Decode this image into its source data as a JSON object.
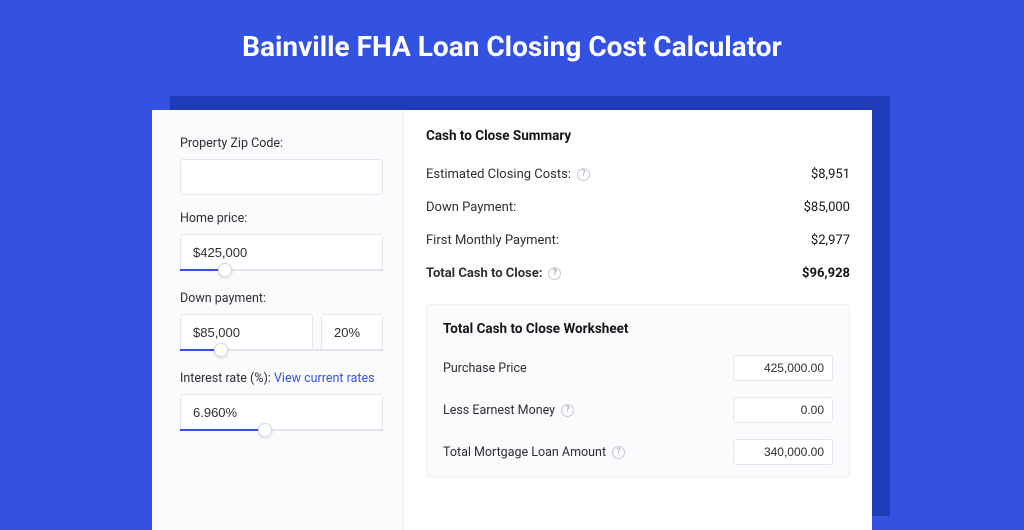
{
  "colors": {
    "page_bg": "#3452e1",
    "shadow_bg": "#1f3bb8",
    "card_bg": "#ffffff",
    "left_bg": "#fbfbfd",
    "border": "#e3e6ee",
    "text": "#2e2e34",
    "link": "#3452e1"
  },
  "header": {
    "title": "Bainville FHA Loan Closing Cost Calculator"
  },
  "left": {
    "zip": {
      "label": "Property Zip Code:",
      "value": ""
    },
    "home_price": {
      "label": "Home price:",
      "value": "$425,000",
      "slider_pct": 22
    },
    "down_payment": {
      "label": "Down payment:",
      "value": "$85,000",
      "pct_value": "20%",
      "slider_pct": 20
    },
    "interest": {
      "label": "Interest rate (%):",
      "link_text": "View current rates",
      "value": "6.960%",
      "slider_pct": 42
    }
  },
  "summary": {
    "title": "Cash to Close Summary",
    "rows": [
      {
        "label": "Estimated Closing Costs:",
        "help": true,
        "value": "$8,951",
        "bold": false
      },
      {
        "label": "Down Payment:",
        "help": false,
        "value": "$85,000",
        "bold": false
      },
      {
        "label": "First Monthly Payment:",
        "help": false,
        "value": "$2,977",
        "bold": false
      },
      {
        "label": "Total Cash to Close:",
        "help": true,
        "value": "$96,928",
        "bold": true
      }
    ]
  },
  "worksheet": {
    "title": "Total Cash to Close Worksheet",
    "rows": [
      {
        "label": "Purchase Price",
        "help": false,
        "value": "425,000.00"
      },
      {
        "label": "Less Earnest Money",
        "help": true,
        "value": "0.00"
      },
      {
        "label": "Total Mortgage Loan Amount",
        "help": true,
        "value": "340,000.00"
      }
    ]
  }
}
